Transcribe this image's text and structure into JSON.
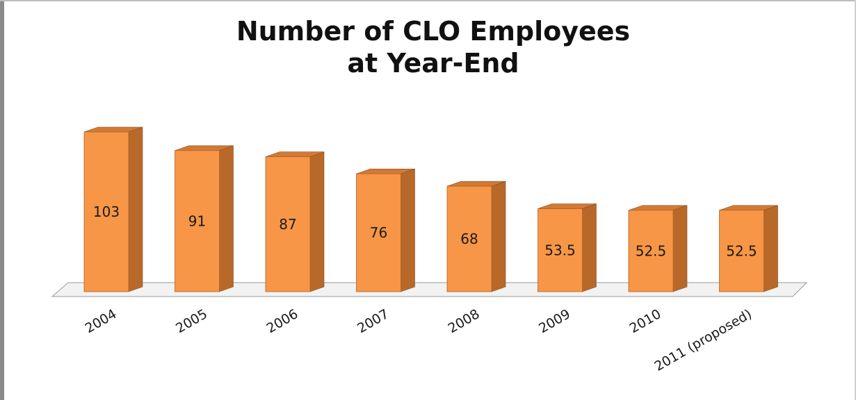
{
  "chart_data": {
    "type": "bar",
    "title": "Number of CLO Employees\nat Year-End",
    "categories": [
      "2004",
      "2005",
      "2006",
      "2007",
      "2008",
      "2009",
      "2010",
      "2011 (proposed)"
    ],
    "values": [
      103,
      91,
      87,
      76,
      68,
      53.5,
      52.5,
      52.5
    ],
    "data_labels": [
      "103",
      "91",
      "87",
      "76",
      "68",
      "53.5",
      "52.5",
      "52.5"
    ],
    "ylim": [
      0,
      110
    ],
    "grid": false,
    "legend": "none",
    "style": "3d-column"
  },
  "colors": {
    "bar_front": "#F79646",
    "bar_side": "#B8692A",
    "bar_top": "#D27A34",
    "floor": "#F2F2F2"
  }
}
